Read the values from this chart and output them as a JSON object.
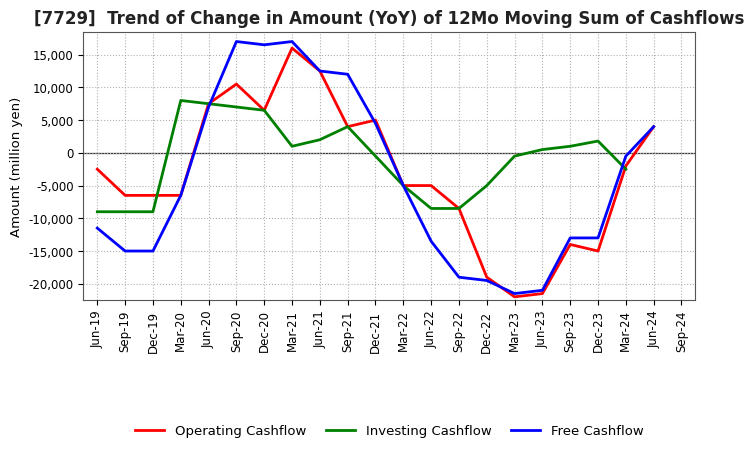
{
  "title": "[7729]  Trend of Change in Amount (YoY) of 12Mo Moving Sum of Cashflows",
  "ylabel": "Amount (million yen)",
  "x_labels": [
    "Jun-19",
    "Sep-19",
    "Dec-19",
    "Mar-20",
    "Jun-20",
    "Sep-20",
    "Dec-20",
    "Mar-21",
    "Jun-21",
    "Sep-21",
    "Dec-21",
    "Mar-22",
    "Jun-22",
    "Sep-22",
    "Dec-22",
    "Mar-23",
    "Jun-23",
    "Sep-23",
    "Dec-23",
    "Mar-24",
    "Jun-24",
    "Sep-24"
  ],
  "operating": [
    -2500,
    -6500,
    -6500,
    -6500,
    7500,
    10500,
    6500,
    16000,
    12500,
    4000,
    5000,
    -5000,
    -5000,
    -8500,
    -19000,
    -22000,
    -21500,
    -14000,
    -15000,
    -2000,
    4000,
    null
  ],
  "investing": [
    -9000,
    -9000,
    -9000,
    8000,
    7500,
    7000,
    6500,
    1000,
    2000,
    4000,
    -500,
    -5000,
    -8500,
    -8500,
    -5000,
    -500,
    500,
    1000,
    1800,
    -2500,
    null,
    null
  ],
  "free": [
    -11500,
    -15000,
    -15000,
    -6500,
    7000,
    17000,
    16500,
    17000,
    12500,
    12000,
    4500,
    -5000,
    -13500,
    -19000,
    -19500,
    -21500,
    -21000,
    -13000,
    -13000,
    -500,
    4000,
    null
  ],
  "operating_color": "#ff0000",
  "investing_color": "#008000",
  "free_color": "#0000ff",
  "ylim": [
    -22500,
    18500
  ],
  "yticks": [
    -20000,
    -15000,
    -10000,
    -5000,
    0,
    5000,
    10000,
    15000
  ],
  "background_color": "#ffffff",
  "grid_color": "#b0b0b0",
  "title_fontsize": 12,
  "label_fontsize": 9.5,
  "tick_fontsize": 8.5,
  "legend_fontsize": 9.5,
  "linewidth": 2.0
}
